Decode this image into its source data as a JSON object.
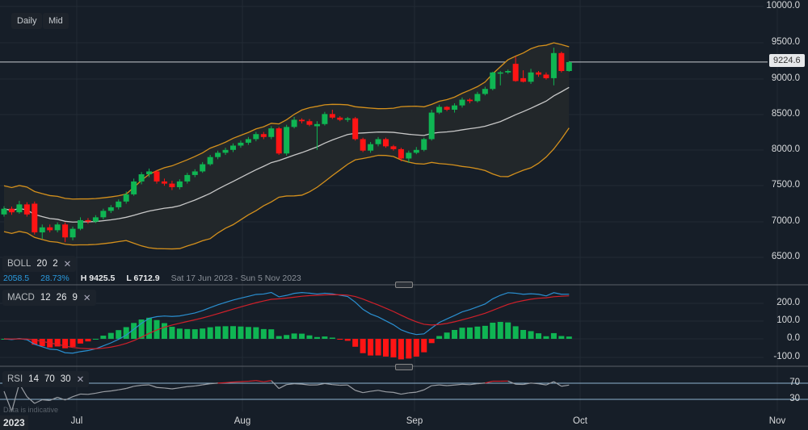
{
  "toolbar": {
    "interval": "Daily",
    "price_type": "Mid"
  },
  "last_price": "9224.6",
  "boll": {
    "name": "BOLL",
    "period": "20",
    "stddev": "2",
    "range_value": "2058.5",
    "range_pct": "28.73%",
    "high": "H 9425.5",
    "low": "L 6712.9",
    "date_range": "Sat 17 Jun 2023 - Sun 5 Nov 2023"
  },
  "macd": {
    "name": "MACD",
    "fast": "12",
    "slow": "26",
    "signal": "9"
  },
  "rsi": {
    "name": "RSI",
    "period": "14",
    "upper": "70",
    "lower": "30"
  },
  "footer_note": "Data is indicative",
  "year_label": "2023",
  "colors": {
    "up": "#0fb553",
    "down": "#ff1414",
    "band": "#d4901c",
    "middle": "#c8c8c8",
    "macd": "#2a8fd0",
    "signal": "#d0202a",
    "rsi": "#9a9ea4",
    "rsi_over": "#d0202a"
  },
  "chart_data": [
    {
      "type": "candlestick",
      "title": "",
      "y_ticks": [
        "10000.0",
        "9500.0",
        "9000.0",
        "8500.0",
        "8000.0",
        "7500.0",
        "7000.0",
        "6500.0"
      ],
      "ylim": [
        6500,
        10000
      ],
      "x_ticks": [
        "Jul",
        "Aug",
        "Sep",
        "Oct",
        "Nov"
      ],
      "grid": true,
      "overlay": "Bollinger Bands (20, 2)",
      "ohlc": [
        [
          7100,
          7215,
          7070,
          7180
        ],
        [
          7180,
          7210,
          7095,
          7130
        ],
        [
          7130,
          7290,
          7110,
          7240
        ],
        [
          7240,
          7270,
          7070,
          7100
        ],
        [
          7250,
          7280,
          6820,
          6850
        ],
        [
          6850,
          6960,
          6760,
          6920
        ],
        [
          6920,
          6960,
          6850,
          6880
        ],
        [
          6880,
          6990,
          6850,
          6960
        ],
        [
          6960,
          6990,
          6712.9,
          6780
        ],
        [
          6780,
          6930,
          6740,
          6900
        ],
        [
          6900,
          7060,
          6880,
          7020
        ],
        [
          7020,
          7050,
          6970,
          7000
        ],
        [
          7000,
          7090,
          6980,
          7060
        ],
        [
          7060,
          7180,
          7030,
          7150
        ],
        [
          7150,
          7230,
          7120,
          7200
        ],
        [
          7200,
          7310,
          7170,
          7280
        ],
        [
          7280,
          7420,
          7250,
          7380
        ],
        [
          7380,
          7600,
          7360,
          7560
        ],
        [
          7560,
          7690,
          7520,
          7660
        ],
        [
          7660,
          7740,
          7620,
          7700
        ],
        [
          7700,
          7720,
          7530,
          7560
        ],
        [
          7560,
          7600,
          7500,
          7530
        ],
        [
          7530,
          7570,
          7440,
          7480
        ],
        [
          7480,
          7590,
          7450,
          7560
        ],
        [
          7560,
          7680,
          7530,
          7650
        ],
        [
          7650,
          7730,
          7620,
          7700
        ],
        [
          7700,
          7830,
          7680,
          7800
        ],
        [
          7800,
          7930,
          7780,
          7900
        ],
        [
          7900,
          7990,
          7870,
          7960
        ],
        [
          7960,
          8030,
          7930,
          8000
        ],
        [
          8000,
          8090,
          7970,
          8060
        ],
        [
          8060,
          8130,
          8030,
          8100
        ],
        [
          8100,
          8180,
          8070,
          8150
        ],
        [
          8150,
          8250,
          8120,
          8220
        ],
        [
          8220,
          8250,
          8150,
          8180
        ],
        [
          8180,
          8330,
          8150,
          8300
        ],
        [
          8300,
          8320,
          7930,
          7950
        ],
        [
          7950,
          8350,
          7920,
          8320
        ],
        [
          8320,
          8460,
          8300,
          8420
        ],
        [
          8420,
          8440,
          8370,
          8400
        ],
        [
          8400,
          8430,
          8330,
          8350
        ],
        [
          8330,
          8400,
          8000,
          8360
        ],
        [
          8360,
          8530,
          8340,
          8500
        ],
        [
          8500,
          8560,
          8430,
          8450
        ],
        [
          8450,
          8470,
          8400,
          8420
        ],
        [
          8420,
          8460,
          8390,
          8440
        ],
        [
          8440,
          8460,
          8130,
          8150
        ],
        [
          8150,
          8170,
          7970,
          7990
        ],
        [
          7990,
          8110,
          7960,
          8080
        ],
        [
          8080,
          8180,
          8050,
          8150
        ],
        [
          8150,
          8170,
          8030,
          8050
        ],
        [
          8050,
          8070,
          7990,
          8010
        ],
        [
          8010,
          8030,
          7840,
          7880
        ],
        [
          7880,
          7990,
          7820,
          7960
        ],
        [
          7960,
          8040,
          7940,
          8000
        ],
        [
          8000,
          8170,
          7980,
          8150
        ],
        [
          8150,
          8560,
          8130,
          8520
        ],
        [
          8520,
          8630,
          8500,
          8600
        ],
        [
          8600,
          8610,
          8540,
          8560
        ],
        [
          8560,
          8650,
          8520,
          8620
        ],
        [
          8620,
          8730,
          8590,
          8700
        ],
        [
          8700,
          8720,
          8650,
          8680
        ],
        [
          8680,
          8810,
          8660,
          8780
        ],
        [
          8780,
          8880,
          8760,
          8850
        ],
        [
          8850,
          9090,
          8830,
          9080
        ],
        [
          9080,
          9100,
          8900,
          9080
        ],
        [
          9080,
          9120,
          9060,
          9100
        ],
        [
          9200,
          9300,
          8950,
          8960
        ],
        [
          9000,
          9110,
          8940,
          8950
        ],
        [
          8950,
          9130,
          8920,
          9080
        ],
        [
          9080,
          9100,
          9020,
          9050
        ],
        [
          9050,
          9080,
          8980,
          9000
        ],
        [
          9000,
          9425.5,
          8900,
          9350
        ],
        [
          9350,
          9370,
          9080,
          9100
        ],
        [
          9100,
          9240,
          9090,
          9224.6
        ]
      ]
    },
    {
      "type": "line",
      "name": "MACD (12, 26, 9)",
      "y_ticks": [
        "200.0",
        "100.0",
        "0.0",
        "-100.0"
      ],
      "derived_from": "ohlc close"
    },
    {
      "type": "line",
      "name": "RSI (14)",
      "y_ticks": [
        "70",
        "30"
      ],
      "derived_from": "ohlc close"
    }
  ]
}
